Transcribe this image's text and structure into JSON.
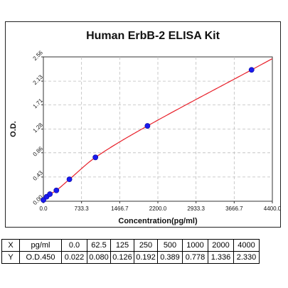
{
  "chart_data": {
    "type": "scatter",
    "title": "Human ErbB-2 ELISA Kit",
    "xlabel": "Concentration(pg/ml)",
    "ylabel": "O.D.",
    "xlim": [
      0,
      4400
    ],
    "ylim": [
      0,
      2.56
    ],
    "x_ticks": [
      0,
      733.3,
      1466.7,
      2200,
      2933.3,
      3666.7,
      4400
    ],
    "x_tick_labels": [
      "0.0",
      "733.3",
      "1466.7",
      "2200.0",
      "2933.3",
      "3666.7",
      "4400.0"
    ],
    "y_ticks": [
      0,
      0.43,
      0.86,
      1.28,
      1.71,
      2.13,
      2.56
    ],
    "y_tick_labels": [
      "0.00",
      "0.43",
      "0.86",
      "1.28",
      "1.71",
      "2.13",
      "2.56"
    ],
    "grid": true,
    "x": [
      0,
      62.5,
      125,
      250,
      500,
      1000,
      2000,
      4000
    ],
    "y": [
      0.022,
      0.08,
      0.126,
      0.192,
      0.389,
      0.778,
      1.336,
      2.33
    ],
    "point_color": "#1a1aee",
    "curve_color": "#e8202a"
  },
  "table": {
    "rows": [
      [
        "X",
        "pg/ml",
        "0.0",
        "62.5",
        "125",
        "250",
        "500",
        "1000",
        "2000",
        "4000"
      ],
      [
        "Y",
        "O.D.450",
        "0.022",
        "0.080",
        "0.126",
        "0.192",
        "0.389",
        "0.778",
        "1.336",
        "2.330"
      ]
    ]
  }
}
